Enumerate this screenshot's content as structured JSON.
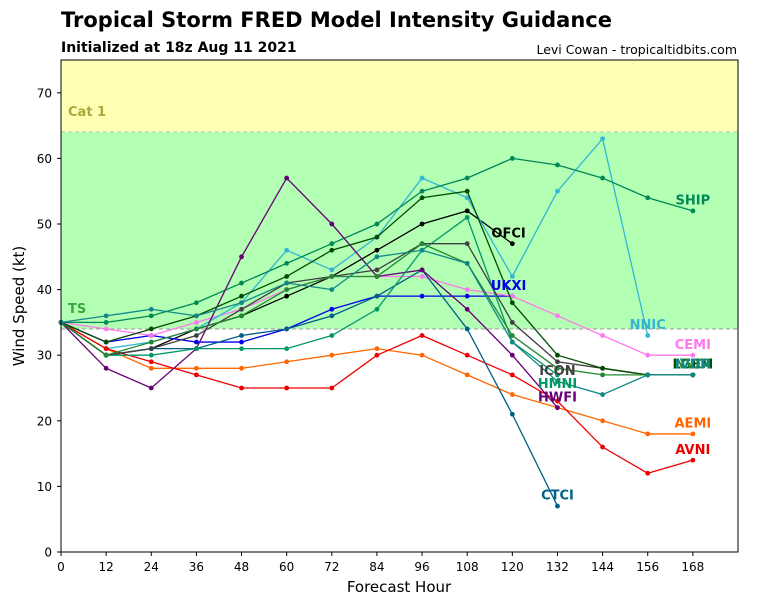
{
  "page": {
    "title": "Tropical Storm FRED Model Intensity Guidance",
    "subtitle": "Initialized at 18z Aug 11 2021",
    "credit": "Levi Cowan - tropicaltidbits.com"
  },
  "chart_data": {
    "type": "line",
    "title": "Tropical Storm FRED Model Intensity Guidance",
    "subtitle": "Initialized at 18z Aug 11 2021",
    "xlabel": "Forecast Hour",
    "ylabel": "Wind Speed (kt)",
    "xlim": [
      0,
      180
    ],
    "ylim": [
      0,
      75
    ],
    "xticks": [
      0,
      12,
      24,
      36,
      48,
      60,
      72,
      84,
      96,
      108,
      120,
      132,
      144,
      156,
      168
    ],
    "yticks": [
      0,
      10,
      20,
      30,
      40,
      50,
      60,
      70
    ],
    "bands": [
      {
        "name": "Cat 1",
        "from": 64,
        "to": 75,
        "color": "#ffffb3",
        "label_color": "#a8a83c"
      },
      {
        "name": "TS",
        "from": 34,
        "to": 64,
        "color": "#b3ffb3",
        "label_color": "#3ca83c"
      }
    ],
    "series": [
      {
        "name": "OFCI",
        "color": "#000000",
        "x": [
          0,
          12,
          24,
          36,
          48,
          60,
          72,
          84,
          96,
          108,
          120
        ],
        "values": [
          35,
          30,
          31,
          34,
          36,
          39,
          42,
          46,
          50,
          52,
          47
        ],
        "label_at": [
          119,
          48.5
        ]
      },
      {
        "name": "UKXI",
        "color": "#0000ee",
        "x": [
          0,
          12,
          24,
          36,
          48,
          60,
          72,
          84,
          96,
          108,
          120
        ],
        "values": [
          35,
          32,
          33,
          32,
          32,
          34,
          37,
          39,
          39,
          39,
          39
        ],
        "label_at": [
          119,
          40.5
        ]
      },
      {
        "name": "CEMI",
        "color": "#ff77ee",
        "x": [
          0,
          12,
          24,
          36,
          48,
          60,
          72,
          84,
          96,
          108,
          120,
          132,
          144,
          156,
          168
        ],
        "values": [
          35,
          34,
          33,
          35,
          37,
          40,
          42,
          42,
          42,
          40,
          39,
          36,
          33,
          30,
          30
        ],
        "label_at": [
          168,
          31.5
        ]
      },
      {
        "name": "NNIC",
        "color": "#33b5d5",
        "x": [
          0,
          12,
          24,
          36,
          48,
          60,
          72,
          84,
          96,
          108,
          120,
          132,
          144,
          156
        ],
        "values": [
          35,
          31,
          32,
          34,
          38,
          46,
          43,
          48,
          57,
          54,
          42,
          55,
          63,
          33
        ],
        "label_at": [
          156,
          34.5
        ]
      },
      {
        "name": "SHIP",
        "color": "#008855",
        "x": [
          0,
          12,
          24,
          36,
          48,
          60,
          72,
          84,
          96,
          108,
          120,
          132,
          144,
          156,
          168
        ],
        "values": [
          35,
          35,
          36,
          38,
          41,
          44,
          47,
          50,
          55,
          57,
          60,
          59,
          57,
          54,
          52
        ],
        "label_at": [
          168,
          53.5
        ]
      },
      {
        "name": "AEMI",
        "color": "#ff6600",
        "x": [
          0,
          12,
          24,
          36,
          48,
          60,
          72,
          84,
          96,
          108,
          120,
          132,
          144,
          156,
          168
        ],
        "values": [
          35,
          31,
          28,
          28,
          28,
          29,
          30,
          31,
          30,
          27,
          24,
          22,
          20,
          18,
          18
        ],
        "label_at": [
          168,
          19.5
        ]
      },
      {
        "name": "AVNI",
        "color": "#ee0000",
        "x": [
          0,
          12,
          24,
          36,
          48,
          60,
          72,
          84,
          96,
          108,
          120,
          132,
          144,
          156,
          168
        ],
        "values": [
          35,
          31,
          29,
          27,
          25,
          25,
          25,
          30,
          33,
          30,
          27,
          23,
          16,
          12,
          14
        ],
        "label_at": [
          168,
          15.5
        ]
      },
      {
        "name": "CTCI",
        "color": "#005f87",
        "x": [
          0,
          12,
          24,
          36,
          48,
          60,
          72,
          84,
          96,
          108,
          120,
          132
        ],
        "values": [
          35,
          30,
          31,
          31,
          33,
          34,
          36,
          39,
          43,
          34,
          21,
          7
        ],
        "label_at": [
          132,
          8.5
        ]
      },
      {
        "name": "HWFI",
        "color": "#660077",
        "x": [
          0,
          12,
          24,
          36,
          48,
          60,
          72,
          84,
          96,
          108,
          120,
          132
        ],
        "values": [
          35,
          28,
          25,
          31,
          45,
          57,
          50,
          42,
          43,
          37,
          30,
          22
        ],
        "label_at": [
          132,
          23.5
        ]
      },
      {
        "name": "HMNI",
        "color": "#009966",
        "x": [
          0,
          12,
          24,
          36,
          48,
          60,
          72,
          84,
          96,
          108,
          120,
          132
        ],
        "values": [
          35,
          30,
          30,
          31,
          31,
          31,
          33,
          37,
          46,
          51,
          32,
          27
        ],
        "label_at": [
          132,
          25.5
        ]
      },
      {
        "name": "ICON",
        "color": "#404040",
        "x": [
          0,
          12,
          24,
          36,
          48,
          60,
          72,
          84,
          96,
          108,
          120,
          132,
          144,
          156,
          168
        ],
        "values": [
          35,
          30,
          31,
          33,
          37,
          41,
          42,
          43,
          47,
          47,
          35,
          29,
          28,
          27,
          27
        ],
        "label_at": [
          132,
          27.5
        ]
      },
      {
        "name": "LGEM",
        "color": "#004d00",
        "x": [
          0,
          12,
          24,
          36,
          48,
          60,
          72,
          84,
          96,
          108,
          120,
          132,
          144,
          156,
          168
        ],
        "values": [
          35,
          32,
          34,
          36,
          39,
          42,
          46,
          48,
          54,
          55,
          38,
          30,
          28,
          27,
          27
        ],
        "label_at": [
          168,
          28.5
        ]
      },
      {
        "name": "NVGI",
        "color": "#228833",
        "x": [
          0,
          12,
          24,
          36,
          48,
          60,
          72,
          84,
          96,
          108,
          120,
          132,
          144,
          156,
          168
        ],
        "values": [
          35,
          30,
          32,
          34,
          36,
          40,
          42,
          42,
          47,
          44,
          33,
          28,
          27,
          27,
          27
        ],
        "label_at": [
          168,
          28.5
        ]
      },
      {
        "name": "IVDR",
        "color": "#118888",
        "x": [
          0,
          12,
          24,
          36,
          48,
          60,
          72,
          84,
          96,
          108,
          120,
          132,
          144,
          156,
          168
        ],
        "values": [
          35,
          36,
          37,
          36,
          38,
          41,
          40,
          45,
          46,
          44,
          32,
          26,
          24,
          27,
          27
        ],
        "label_at": [
          168,
          28.5
        ]
      }
    ]
  }
}
